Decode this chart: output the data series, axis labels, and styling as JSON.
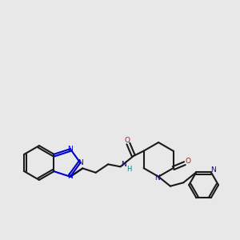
{
  "bg_color": "#e8e8e8",
  "bond_color": "#1a1a1a",
  "N_color": "#0000cc",
  "O_color": "#dd0000",
  "H_color": "#008080",
  "line_width": 1.5,
  "fig_size": [
    3.0,
    3.0
  ],
  "dpi": 100,
  "xlim": [
    0,
    10
  ],
  "ylim": [
    0,
    10
  ]
}
